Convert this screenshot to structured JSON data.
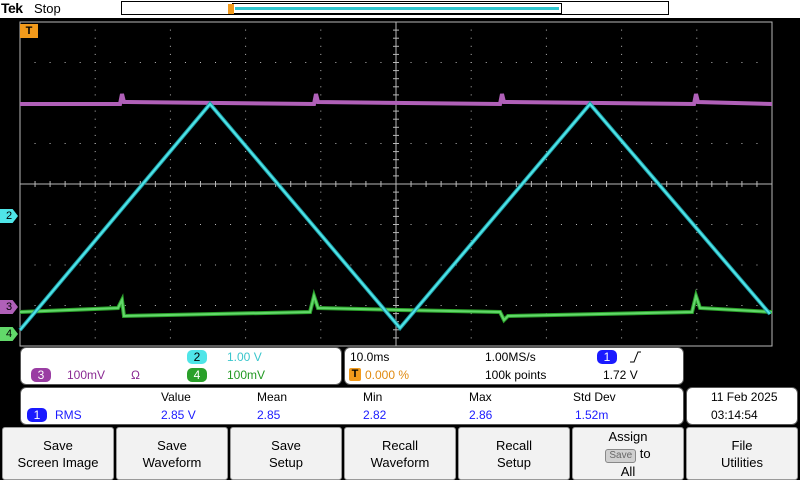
{
  "top_bar": {
    "brand": "Tek",
    "state": "Stop"
  },
  "channels": {
    "ch2": {
      "number": "2",
      "scale": "1.00 V",
      "color": "#4fe5e8"
    },
    "ch3": {
      "number": "3",
      "scale": "100mV",
      "coupling": "Ω",
      "color": "#b060b8"
    },
    "ch4": {
      "number": "4",
      "scale": "100mV",
      "color": "#62d86a"
    }
  },
  "markers": {
    "trigger": "T",
    "ch2": "2",
    "ch3": "3",
    "ch4": "4"
  },
  "timebase": {
    "scale": "10.0ms",
    "sample_rate": "1.00MS/s",
    "record_length": "100k points",
    "trigger_position": "0.000 %",
    "trigger_source": "1",
    "trigger_slope_icon": "rising-edge-icon",
    "trigger_level": "1.72 V"
  },
  "measurement": {
    "headers": {
      "value": "Value",
      "mean": "Mean",
      "min": "Min",
      "max": "Max",
      "std": "Std Dev"
    },
    "channel": "1",
    "type": "RMS",
    "value": "2.85 V",
    "mean": "2.85",
    "min": "2.82",
    "max": "2.86",
    "std": "1.52m"
  },
  "datetime": {
    "date": "11 Feb  2025",
    "time": "03:14:54"
  },
  "buttons": {
    "save_screen": [
      "Save",
      "Screen Image"
    ],
    "save_waveform": [
      "Save",
      "Waveform"
    ],
    "save_setup": [
      "Save",
      "Setup"
    ],
    "recall_waveform": [
      "Recall",
      "Waveform"
    ],
    "recall_setup": [
      "Recall",
      "Setup"
    ],
    "assign": {
      "line1": "Assign",
      "chip": "Save",
      "to": "to",
      "line3": "All"
    },
    "file_utilities": [
      "File",
      "Utilities"
    ]
  },
  "colors": {
    "trigger": "#f29a1b",
    "ch1": "#1a1aff",
    "grid": "#b8b8b8"
  }
}
